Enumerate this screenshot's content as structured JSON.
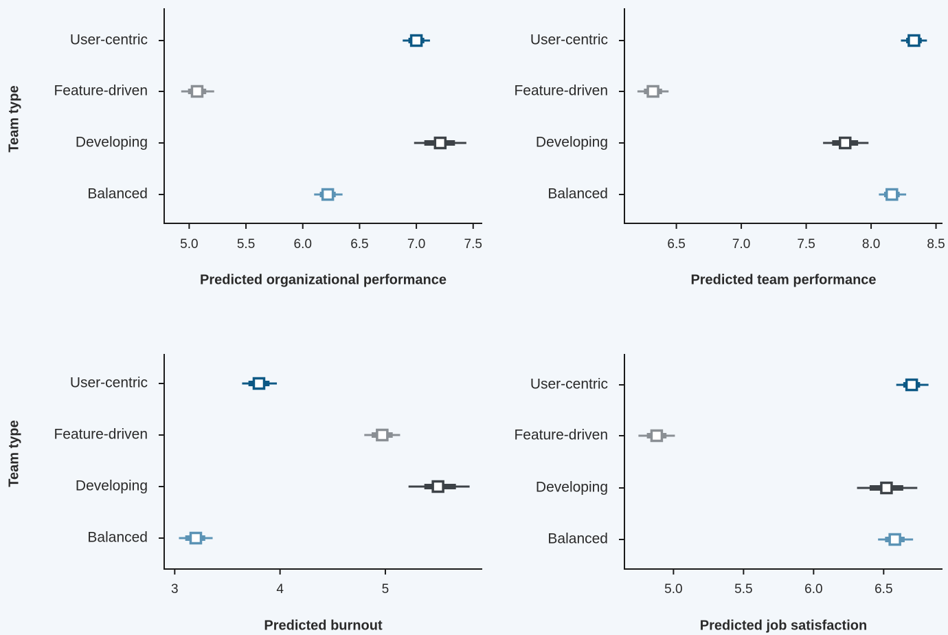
{
  "chart_data": [
    {
      "type": "interval",
      "ylabel": "Team type",
      "xlabel": "Predicted organizational performance",
      "xlim": [
        4.78,
        7.58
      ],
      "xticks": [
        "5.0",
        "5.5",
        "6.0",
        "6.5",
        "7.0",
        "7.5"
      ],
      "tick_values": [
        5.0,
        5.5,
        6.0,
        6.5,
        7.0,
        7.5
      ],
      "categories": [
        "User-centric",
        "Feature-driven",
        "Developing",
        "Balanced"
      ],
      "estimates": [
        {
          "category": "User-centric",
          "value": 7.0,
          "inner": [
            6.93,
            7.07
          ],
          "outer": [
            6.88,
            7.12
          ],
          "color": "#0d5985"
        },
        {
          "category": "Feature-driven",
          "value": 5.07,
          "inner": [
            4.99,
            5.15
          ],
          "outer": [
            4.93,
            5.22
          ],
          "color": "#8a8f94"
        },
        {
          "category": "Developing",
          "value": 7.21,
          "inner": [
            7.07,
            7.34
          ],
          "outer": [
            6.98,
            7.44
          ],
          "color": "#3d4247"
        },
        {
          "category": "Balanced",
          "value": 6.22,
          "inner": [
            6.15,
            6.29
          ],
          "outer": [
            6.1,
            6.35
          ],
          "color": "#5b93b5"
        }
      ]
    },
    {
      "type": "interval",
      "ylabel": "",
      "xlabel": "Predicted team performance",
      "xlim": [
        6.1,
        8.55
      ],
      "xticks": [
        "6.5",
        "7.0",
        "7.5",
        "8.0",
        "8.5"
      ],
      "tick_values": [
        6.5,
        7.0,
        7.5,
        8.0,
        8.5
      ],
      "categories": [
        "User-centric",
        "Feature-driven",
        "Developing",
        "Balanced"
      ],
      "estimates": [
        {
          "category": "User-centric",
          "value": 8.33,
          "inner": [
            8.27,
            8.39
          ],
          "outer": [
            8.23,
            8.43
          ],
          "color": "#0d5985"
        },
        {
          "category": "Feature-driven",
          "value": 6.32,
          "inner": [
            6.25,
            6.39
          ],
          "outer": [
            6.2,
            6.44
          ],
          "color": "#8a8f94"
        },
        {
          "category": "Developing",
          "value": 7.8,
          "inner": [
            7.7,
            7.9
          ],
          "outer": [
            7.63,
            7.98
          ],
          "color": "#3d4247"
        },
        {
          "category": "Balanced",
          "value": 8.16,
          "inner": [
            8.1,
            8.22
          ],
          "outer": [
            8.06,
            8.27
          ],
          "color": "#5b93b5"
        }
      ]
    },
    {
      "type": "interval",
      "ylabel": "Team type",
      "xlabel": "Predicted burnout",
      "xlim": [
        2.9,
        5.92
      ],
      "xticks": [
        "3",
        "4",
        "5"
      ],
      "tick_values": [
        3,
        4,
        5
      ],
      "categories": [
        "User-centric",
        "Feature-driven",
        "Developing",
        "Balanced"
      ],
      "estimates": [
        {
          "category": "User-centric",
          "value": 3.8,
          "inner": [
            3.7,
            3.9
          ],
          "outer": [
            3.64,
            3.97
          ],
          "color": "#0d5985"
        },
        {
          "category": "Feature-driven",
          "value": 4.97,
          "inner": [
            4.87,
            5.07
          ],
          "outer": [
            4.8,
            5.14
          ],
          "color": "#8a8f94"
        },
        {
          "category": "Developing",
          "value": 5.5,
          "inner": [
            5.37,
            5.67
          ],
          "outer": [
            5.22,
            5.8
          ],
          "color": "#3d4247"
        },
        {
          "category": "Balanced",
          "value": 3.2,
          "inner": [
            3.1,
            3.29
          ],
          "outer": [
            3.04,
            3.36
          ],
          "color": "#5b93b5"
        }
      ]
    },
    {
      "type": "interval",
      "ylabel": "",
      "xlabel": "Predicted job satisfaction",
      "xlim": [
        4.65,
        6.92
      ],
      "xticks": [
        "5.0",
        "5.5",
        "6.0",
        "6.5"
      ],
      "tick_values": [
        5.0,
        5.5,
        6.0,
        6.5
      ],
      "categories": [
        "User-centric",
        "Feature-driven",
        "Developing",
        "Balanced"
      ],
      "estimates": [
        {
          "category": "User-centric",
          "value": 6.7,
          "inner": [
            6.64,
            6.76
          ],
          "outer": [
            6.59,
            6.82
          ],
          "color": "#0d5985"
        },
        {
          "category": "Feature-driven",
          "value": 4.88,
          "inner": [
            4.81,
            4.95
          ],
          "outer": [
            4.75,
            5.01
          ],
          "color": "#8a8f94"
        },
        {
          "category": "Developing",
          "value": 6.52,
          "inner": [
            6.4,
            6.64
          ],
          "outer": [
            6.31,
            6.74
          ],
          "color": "#3d4247"
        },
        {
          "category": "Balanced",
          "value": 6.58,
          "inner": [
            6.51,
            6.65
          ],
          "outer": [
            6.46,
            6.71
          ],
          "color": "#5b93b5"
        }
      ]
    }
  ]
}
